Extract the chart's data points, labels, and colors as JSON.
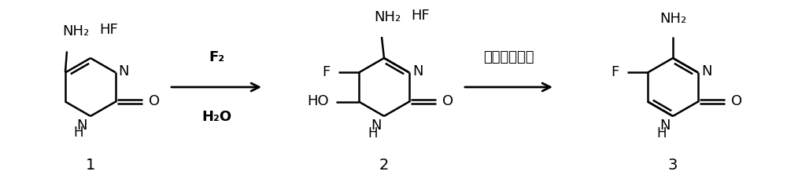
{
  "background_color": "#ffffff",
  "text_color": "#000000",
  "arrow_label1_top": "F₂",
  "arrow_label1_bottom": "H₂O",
  "arrow_label2": "三乙胺，甲醇",
  "compound1_label": "1",
  "compound2_label": "2",
  "compound3_label": "3",
  "figsize": [
    10.0,
    2.23
  ],
  "dpi": 100,
  "lw": 1.8,
  "fs_main": 13,
  "fs_sub": 11,
  "fs_label": 14
}
